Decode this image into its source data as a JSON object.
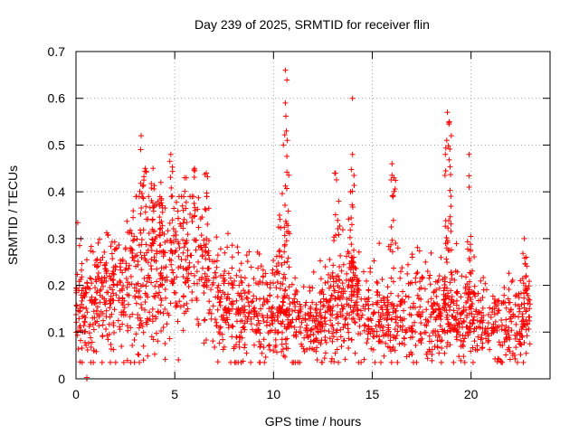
{
  "chart_data": {
    "type": "scatter",
    "title": "Day 239 of 2025, SRMTID for receiver flin",
    "xlabel": "GPS time / hours",
    "ylabel": "SRMTID / TECUs",
    "xlim": [
      0,
      24
    ],
    "ylim": [
      0,
      0.7
    ],
    "xticks": [
      0,
      5,
      10,
      15,
      20
    ],
    "xtick_labels": [
      "0",
      "5",
      "10",
      "15",
      "20"
    ],
    "yticks": [
      0,
      0.1,
      0.2,
      0.3,
      0.4,
      0.5,
      0.6,
      0.7
    ],
    "ytick_labels": [
      "0",
      "0.1",
      "0.2",
      "0.3",
      "0.4",
      "0.5",
      "0.6",
      "0.7"
    ],
    "grid": true,
    "marker": "+",
    "color": "#ff0000",
    "series": [
      {
        "name": "SRMTID",
        "generator": {
          "x_range": [
            0,
            23
          ],
          "count": 2000,
          "seed": 239
        },
        "baseline_profile": [
          [
            0.0,
            0.13
          ],
          [
            1.0,
            0.16
          ],
          [
            2.0,
            0.19
          ],
          [
            3.0,
            0.21
          ],
          [
            4.0,
            0.23
          ],
          [
            5.0,
            0.24
          ],
          [
            6.0,
            0.25
          ],
          [
            7.0,
            0.18
          ],
          [
            8.0,
            0.15
          ],
          [
            9.0,
            0.14
          ],
          [
            10.0,
            0.15
          ],
          [
            11.0,
            0.12
          ],
          [
            12.0,
            0.11
          ],
          [
            13.0,
            0.14
          ],
          [
            14.0,
            0.16
          ],
          [
            15.0,
            0.13
          ],
          [
            16.0,
            0.12
          ],
          [
            17.0,
            0.15
          ],
          [
            18.0,
            0.14
          ],
          [
            19.0,
            0.13
          ],
          [
            20.0,
            0.13
          ],
          [
            21.0,
            0.12
          ],
          [
            22.0,
            0.11
          ],
          [
            23.0,
            0.12
          ]
        ],
        "spikes": [
          [
            3.3,
            0.52
          ],
          [
            3.5,
            0.45
          ],
          [
            3.9,
            0.45
          ],
          [
            4.3,
            0.42
          ],
          [
            4.8,
            0.48
          ],
          [
            5.5,
            0.43
          ],
          [
            6.0,
            0.45
          ],
          [
            6.6,
            0.44
          ],
          [
            10.3,
            0.35
          ],
          [
            10.5,
            0.5
          ],
          [
            10.6,
            0.66
          ],
          [
            10.6,
            0.59
          ],
          [
            10.7,
            0.51
          ],
          [
            13.1,
            0.44
          ],
          [
            13.3,
            0.38
          ],
          [
            13.9,
            0.4
          ],
          [
            14.0,
            0.48
          ],
          [
            14.0,
            0.6
          ],
          [
            16.0,
            0.46
          ],
          [
            16.1,
            0.43
          ],
          [
            18.7,
            0.48
          ],
          [
            18.8,
            0.57
          ],
          [
            18.9,
            0.55
          ],
          [
            19.0,
            0.52
          ],
          [
            19.9,
            0.48
          ],
          [
            19.9,
            0.41
          ],
          [
            22.7,
            0.3
          ],
          [
            22.8,
            0.26
          ]
        ],
        "extra_points": [
          [
            0.55,
            0.0
          ],
          [
            0.55,
            0.003
          ]
        ]
      }
    ]
  }
}
